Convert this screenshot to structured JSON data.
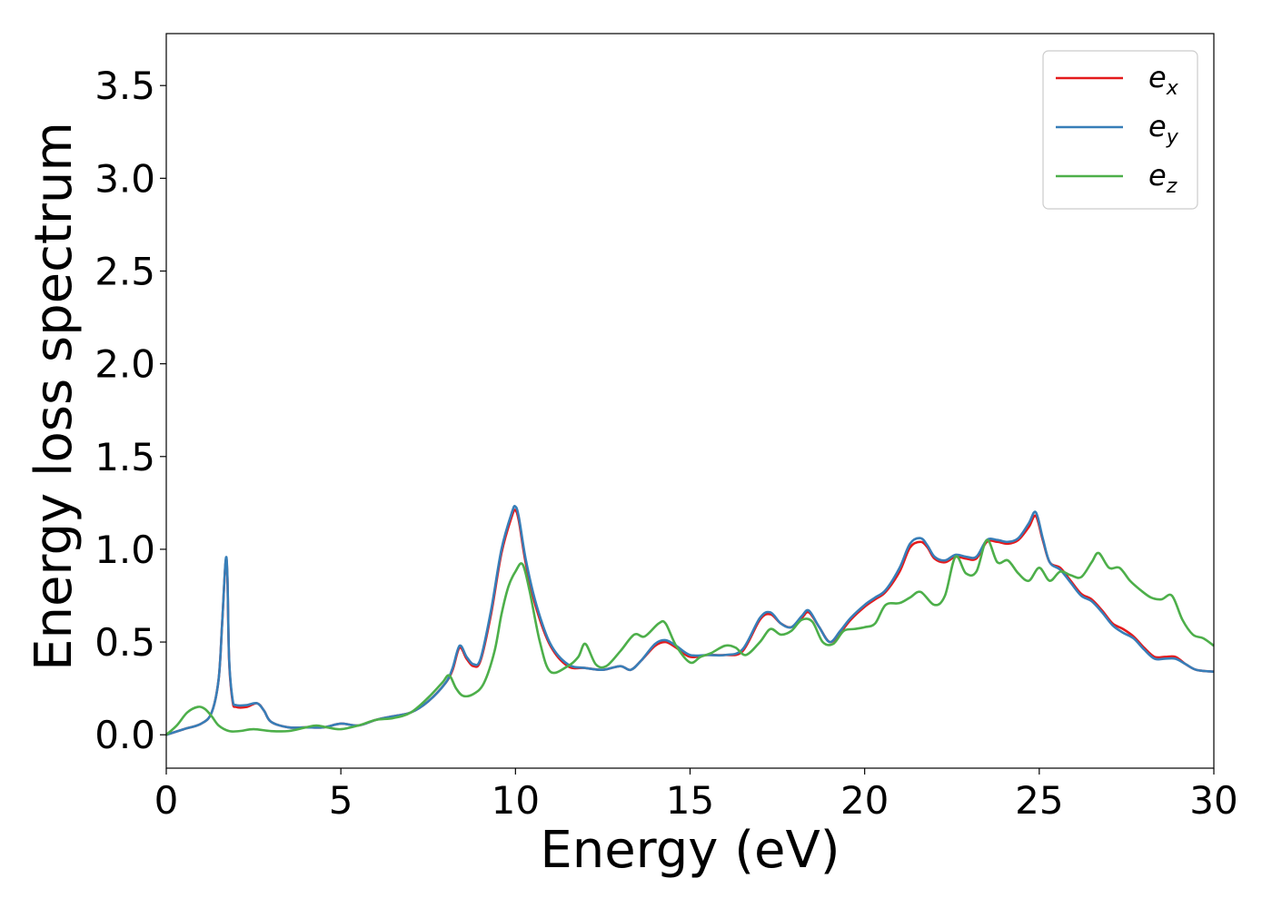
{
  "chart_data": {
    "type": "line",
    "title": "",
    "xlabel": "Energy (eV)",
    "ylabel": "Energy loss spectrum",
    "xlim": [
      0,
      30
    ],
    "ylim": [
      -0.18,
      3.78
    ],
    "xticks": [
      0,
      5,
      10,
      15,
      20,
      25,
      30
    ],
    "xtick_labels": [
      "0",
      "5",
      "10",
      "15",
      "20",
      "25",
      "30"
    ],
    "yticks": [
      0.0,
      0.5,
      1.0,
      1.5,
      2.0,
      2.5,
      3.0,
      3.5
    ],
    "ytick_labels": [
      "0.0",
      "0.5",
      "1.0",
      "1.5",
      "2.0",
      "2.5",
      "3.0",
      "3.5"
    ],
    "grid": false,
    "legend_position": "top-right",
    "series": [
      {
        "name": "e",
        "subscript": "x",
        "color": "#e41a1c",
        "x": [
          0,
          0.5,
          1.0,
          1.3,
          1.5,
          1.6,
          1.7,
          1.75,
          1.8,
          1.9,
          2.0,
          2.3,
          2.6,
          2.8,
          3.0,
          3.5,
          4.0,
          4.5,
          5.0,
          5.5,
          6.0,
          6.5,
          7.0,
          7.5,
          8.0,
          8.2,
          8.4,
          8.6,
          8.8,
          9.0,
          9.3,
          9.6,
          9.9,
          10.0,
          10.1,
          10.3,
          10.6,
          11.0,
          11.5,
          12.0,
          12.5,
          13.0,
          13.3,
          13.6,
          14.0,
          14.3,
          14.6,
          15.0,
          15.5,
          16.0,
          16.5,
          17.0,
          17.3,
          17.6,
          17.9,
          18.2,
          18.4,
          18.7,
          19.0,
          19.3,
          19.6,
          20.0,
          20.3,
          20.6,
          21.0,
          21.3,
          21.6,
          21.8,
          22.0,
          22.3,
          22.6,
          22.9,
          23.2,
          23.5,
          23.8,
          24.1,
          24.4,
          24.7,
          24.9,
          25.1,
          25.3,
          25.6,
          25.9,
          26.2,
          26.5,
          26.8,
          27.1,
          27.4,
          27.7,
          28.0,
          28.3,
          28.6,
          28.9,
          29.2,
          29.5,
          30.0
        ],
        "y": [
          0.0,
          0.03,
          0.06,
          0.12,
          0.3,
          0.6,
          0.93,
          0.85,
          0.4,
          0.18,
          0.15,
          0.15,
          0.17,
          0.13,
          0.07,
          0.04,
          0.04,
          0.04,
          0.06,
          0.05,
          0.08,
          0.1,
          0.12,
          0.18,
          0.28,
          0.35,
          0.47,
          0.41,
          0.37,
          0.4,
          0.65,
          0.98,
          1.18,
          1.21,
          1.15,
          0.92,
          0.68,
          0.48,
          0.37,
          0.36,
          0.35,
          0.37,
          0.35,
          0.4,
          0.48,
          0.5,
          0.47,
          0.42,
          0.43,
          0.43,
          0.45,
          0.62,
          0.65,
          0.6,
          0.58,
          0.63,
          0.66,
          0.58,
          0.5,
          0.55,
          0.62,
          0.69,
          0.73,
          0.77,
          0.88,
          1.01,
          1.04,
          1.01,
          0.95,
          0.93,
          0.96,
          0.95,
          0.95,
          1.04,
          1.04,
          1.03,
          1.05,
          1.12,
          1.18,
          1.05,
          0.93,
          0.9,
          0.83,
          0.76,
          0.73,
          0.67,
          0.6,
          0.57,
          0.53,
          0.47,
          0.42,
          0.42,
          0.42,
          0.38,
          0.35,
          0.34
        ]
      },
      {
        "name": "e",
        "subscript": "y",
        "color": "#377eb8",
        "x": [
          0,
          0.5,
          1.0,
          1.3,
          1.5,
          1.6,
          1.7,
          1.75,
          1.8,
          1.9,
          2.0,
          2.3,
          2.6,
          2.8,
          3.0,
          3.5,
          4.0,
          4.5,
          5.0,
          5.5,
          6.0,
          6.5,
          7.0,
          7.5,
          8.0,
          8.2,
          8.4,
          8.6,
          8.8,
          9.0,
          9.3,
          9.6,
          9.9,
          10.0,
          10.1,
          10.3,
          10.6,
          11.0,
          11.5,
          12.0,
          12.5,
          13.0,
          13.3,
          13.6,
          14.0,
          14.3,
          14.6,
          15.0,
          15.5,
          16.0,
          16.5,
          17.0,
          17.3,
          17.6,
          17.9,
          18.2,
          18.4,
          18.7,
          19.0,
          19.3,
          19.6,
          20.0,
          20.3,
          20.6,
          21.0,
          21.3,
          21.6,
          21.8,
          22.0,
          22.3,
          22.6,
          22.9,
          23.2,
          23.5,
          23.8,
          24.1,
          24.4,
          24.7,
          24.9,
          25.1,
          25.3,
          25.6,
          25.9,
          26.2,
          26.5,
          26.8,
          27.1,
          27.4,
          27.7,
          28.0,
          28.3,
          28.6,
          28.9,
          29.2,
          29.5,
          30.0
        ],
        "y": [
          0.0,
          0.03,
          0.06,
          0.12,
          0.3,
          0.6,
          0.94,
          0.86,
          0.41,
          0.19,
          0.16,
          0.16,
          0.17,
          0.13,
          0.07,
          0.04,
          0.04,
          0.04,
          0.06,
          0.05,
          0.08,
          0.1,
          0.12,
          0.18,
          0.28,
          0.36,
          0.48,
          0.42,
          0.38,
          0.41,
          0.67,
          1.0,
          1.2,
          1.23,
          1.17,
          0.94,
          0.7,
          0.49,
          0.38,
          0.36,
          0.35,
          0.37,
          0.35,
          0.4,
          0.49,
          0.51,
          0.48,
          0.43,
          0.43,
          0.43,
          0.46,
          0.63,
          0.66,
          0.6,
          0.58,
          0.64,
          0.67,
          0.58,
          0.5,
          0.56,
          0.63,
          0.7,
          0.74,
          0.78,
          0.9,
          1.03,
          1.06,
          1.02,
          0.96,
          0.94,
          0.97,
          0.96,
          0.96,
          1.05,
          1.05,
          1.04,
          1.06,
          1.14,
          1.2,
          1.06,
          0.93,
          0.89,
          0.82,
          0.75,
          0.72,
          0.66,
          0.59,
          0.55,
          0.52,
          0.46,
          0.41,
          0.41,
          0.41,
          0.38,
          0.35,
          0.34
        ]
      },
      {
        "name": "e",
        "subscript": "z",
        "color": "#4daf4a",
        "x": [
          0,
          0.3,
          0.6,
          0.9,
          1.1,
          1.3,
          1.5,
          1.8,
          2.1,
          2.5,
          3.0,
          3.5,
          4.0,
          4.3,
          4.6,
          5.0,
          5.5,
          6.0,
          6.5,
          7.0,
          7.5,
          7.9,
          8.1,
          8.3,
          8.5,
          8.8,
          9.1,
          9.4,
          9.6,
          9.8,
          10.0,
          10.2,
          10.4,
          10.7,
          11.0,
          11.5,
          11.8,
          12.0,
          12.3,
          12.6,
          13.0,
          13.4,
          13.7,
          14.1,
          14.3,
          14.6,
          15.0,
          15.3,
          15.6,
          16.0,
          16.3,
          16.6,
          17.0,
          17.3,
          17.6,
          17.9,
          18.2,
          18.5,
          18.8,
          19.1,
          19.4,
          19.7,
          20.0,
          20.3,
          20.6,
          21.0,
          21.3,
          21.6,
          22.0,
          22.3,
          22.6,
          22.9,
          23.2,
          23.5,
          23.8,
          24.1,
          24.4,
          24.7,
          25.0,
          25.3,
          25.6,
          25.9,
          26.2,
          26.5,
          26.7,
          27.0,
          27.3,
          27.6,
          27.9,
          28.2,
          28.5,
          28.8,
          29.1,
          29.4,
          29.7,
          30.0
        ],
        "y": [
          0.0,
          0.05,
          0.12,
          0.15,
          0.14,
          0.1,
          0.05,
          0.02,
          0.02,
          0.03,
          0.02,
          0.02,
          0.04,
          0.05,
          0.04,
          0.03,
          0.05,
          0.08,
          0.09,
          0.12,
          0.2,
          0.28,
          0.32,
          0.25,
          0.21,
          0.22,
          0.28,
          0.45,
          0.65,
          0.8,
          0.88,
          0.92,
          0.78,
          0.5,
          0.34,
          0.37,
          0.42,
          0.49,
          0.38,
          0.37,
          0.45,
          0.54,
          0.53,
          0.6,
          0.6,
          0.48,
          0.39,
          0.42,
          0.44,
          0.48,
          0.47,
          0.43,
          0.5,
          0.57,
          0.54,
          0.56,
          0.62,
          0.61,
          0.5,
          0.49,
          0.56,
          0.57,
          0.58,
          0.6,
          0.7,
          0.71,
          0.74,
          0.77,
          0.7,
          0.75,
          0.96,
          0.87,
          0.88,
          1.05,
          0.93,
          0.94,
          0.87,
          0.83,
          0.9,
          0.83,
          0.88,
          0.86,
          0.85,
          0.93,
          0.98,
          0.9,
          0.9,
          0.83,
          0.78,
          0.74,
          0.73,
          0.75,
          0.62,
          0.54,
          0.52,
          0.48
        ]
      }
    ]
  }
}
